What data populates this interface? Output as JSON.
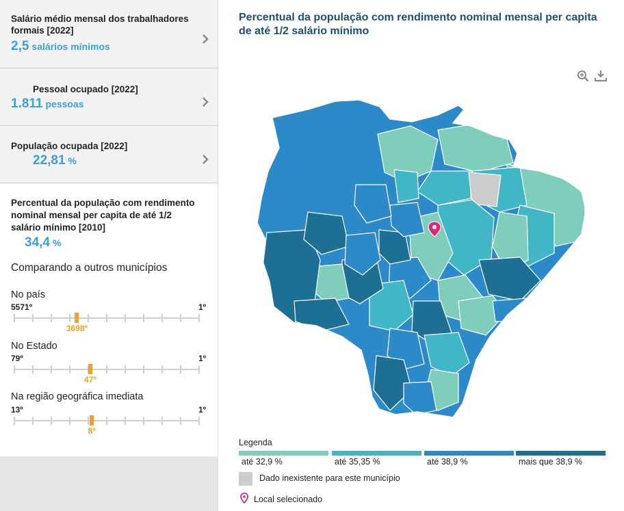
{
  "cards": [
    {
      "title": "Salário médio mensal dos trabalhadores formais [2022]",
      "value": "2,5",
      "unit": "salários mínimos"
    },
    {
      "title": "Pessoal ocupado [2022]",
      "value": "1.811",
      "unit": "pessoas"
    },
    {
      "title": "População ocupada [2022]",
      "value": "22,81",
      "unit": "%"
    }
  ],
  "selected": {
    "title": "Percentual da população com rendimento nominal mensal per capita de até 1/2 salário mínimo [2010]",
    "value": "34,4",
    "unit": "%"
  },
  "comparison": {
    "title": "Comparando a outros municípios",
    "ranks": [
      {
        "label": "No país",
        "min": "5571º",
        "max": "1º",
        "position": "3698º",
        "fraction": 0.336
      },
      {
        "label": "No Estado",
        "min": "79º",
        "max": "1º",
        "position": "47º",
        "fraction": 0.41
      },
      {
        "label": "Na região geográfica imediata",
        "min": "13º",
        "max": "1º",
        "position": "8º",
        "fraction": 0.417
      }
    ]
  },
  "map": {
    "title": "Percentual da população com rendimento nominal mensal per capita de até 1/2 salário mínimo",
    "tools": {
      "zoom": "zoom-in-icon",
      "download": "download-icon"
    },
    "legend": {
      "title": "Legenda",
      "items": [
        {
          "label": "até 32,9 %",
          "color": "#7fcdbb"
        },
        {
          "label": "até 35,35 %",
          "color": "#41b6c4"
        },
        {
          "label": "até 38,9 %",
          "color": "#2c8ac8"
        },
        {
          "label": "mais que 38,9 %",
          "color": "#1d6f94"
        }
      ],
      "no_data": {
        "label": "Dado inexistente para este município",
        "color": "#cccccc"
      },
      "selected_place": {
        "label": "Local selecionado",
        "color": "#e0287a"
      }
    }
  }
}
